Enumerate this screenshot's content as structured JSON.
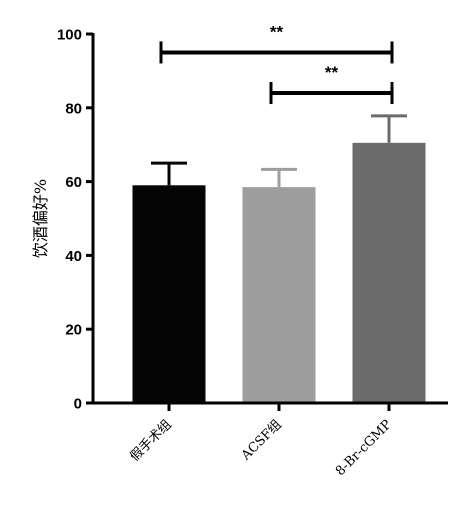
{
  "chart_data": {
    "type": "bar",
    "title": "",
    "xlabel": "",
    "ylabel": "饮酒偏好%",
    "ylim": [
      0,
      100
    ],
    "yticks": [
      0,
      20,
      40,
      60,
      80,
      100
    ],
    "categories": [
      "假手术组",
      "ACSF组",
      "8-Br-cGMP"
    ],
    "values": [
      59,
      58.5,
      70.5
    ],
    "error_upper": [
      65,
      63.3,
      77.8
    ],
    "bar_colors": [
      "#050505",
      "#9e9e9e",
      "#6b6b6b"
    ],
    "grid": false,
    "legend": "none",
    "significance": [
      {
        "from": 0,
        "to": 2,
        "y": 95,
        "label": "**"
      },
      {
        "from": 1,
        "to": 2,
        "y": 84,
        "label": "**"
      }
    ]
  }
}
